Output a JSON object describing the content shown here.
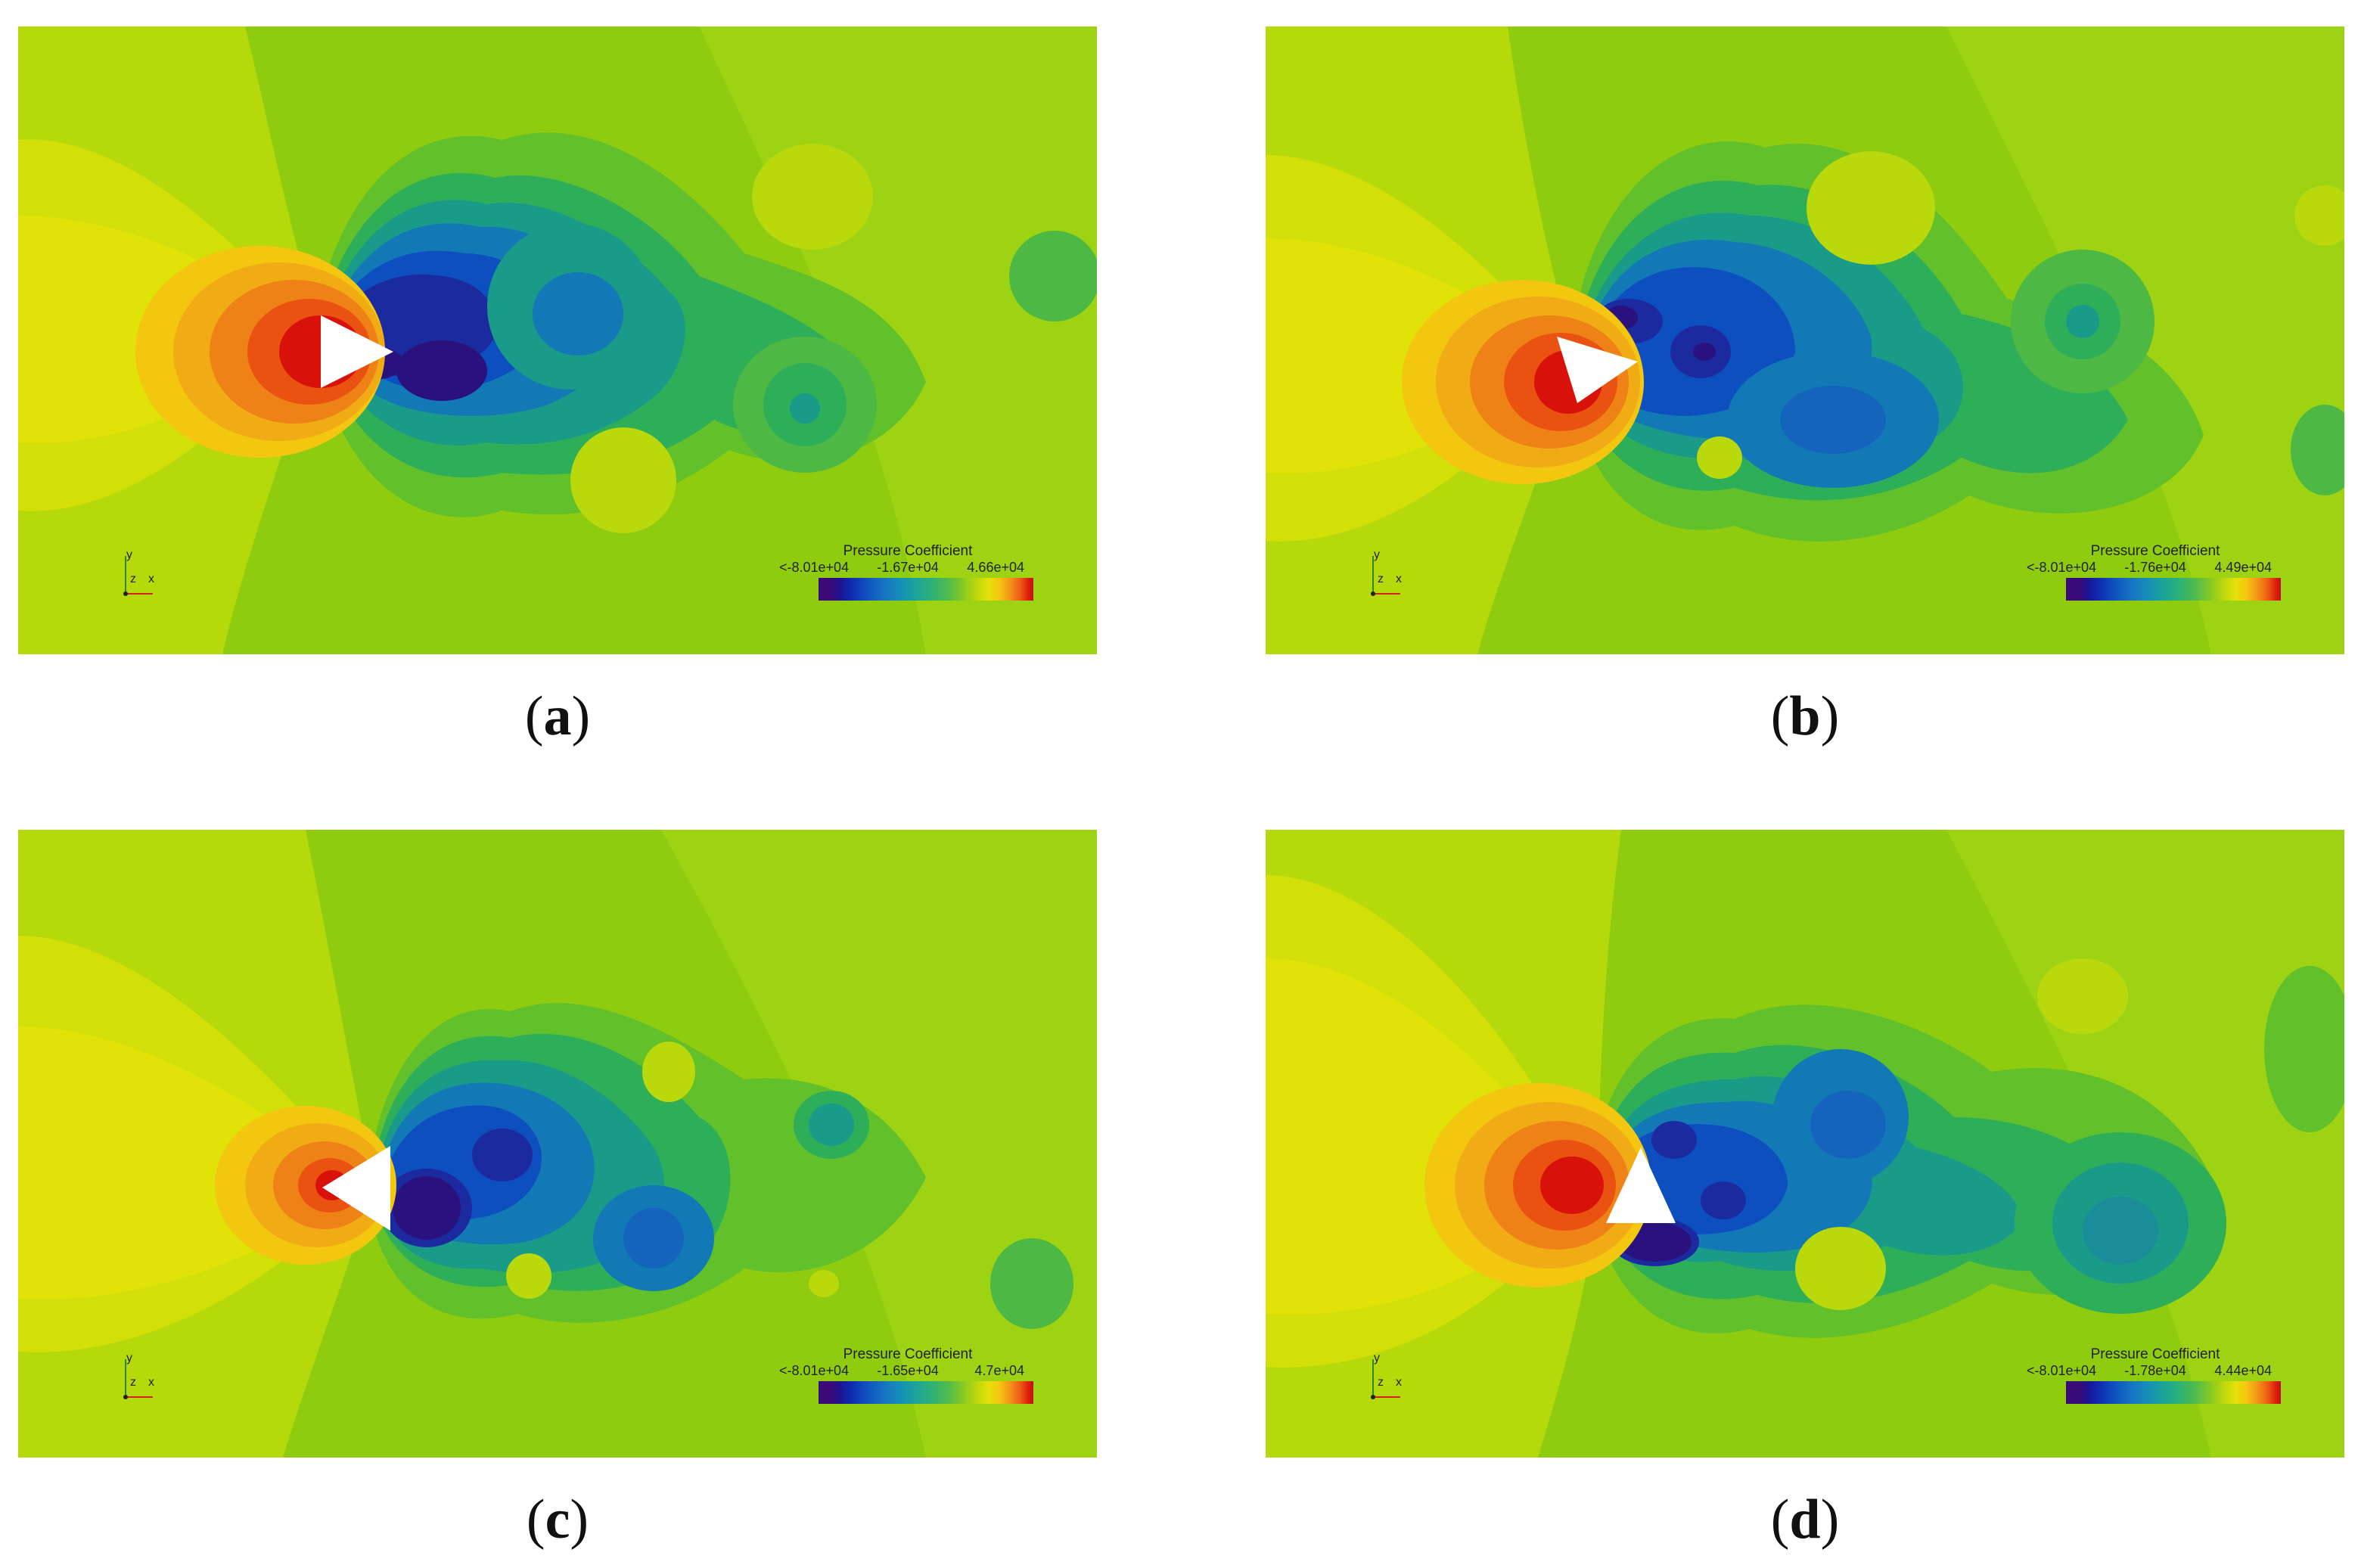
{
  "panels": [
    {
      "id": "a",
      "caption_letter": "a",
      "legend": {
        "title": "Pressure Coefficient",
        "min": "<-8.01e+04",
        "mid": "-1.67e+04",
        "max": "4.66e+04"
      }
    },
    {
      "id": "b",
      "caption_letter": "b",
      "legend": {
        "title": "Pressure Coefficient",
        "min": "<-8.01e+04",
        "mid": "-1.76e+04",
        "max": "4.49e+04"
      }
    },
    {
      "id": "c",
      "caption_letter": "c",
      "legend": {
        "title": "Pressure Coefficient",
        "min": "<-8.01e+04",
        "mid": "-1.65e+04",
        "max": "4.7e+04"
      }
    },
    {
      "id": "d",
      "caption_letter": "d",
      "legend": {
        "title": "Pressure Coefficient",
        "min": "<-8.01e+04",
        "mid": "-1.78e+04",
        "max": "4.44e+04"
      }
    }
  ],
  "axis_labels": {
    "y": "y",
    "z": "z",
    "x": "x"
  },
  "colors": {
    "background_field": "#8fcc10",
    "far_field_yellow": "#d6e008",
    "stagnation_red": "#d8120a",
    "wake_dark": "#3a0a78"
  }
}
